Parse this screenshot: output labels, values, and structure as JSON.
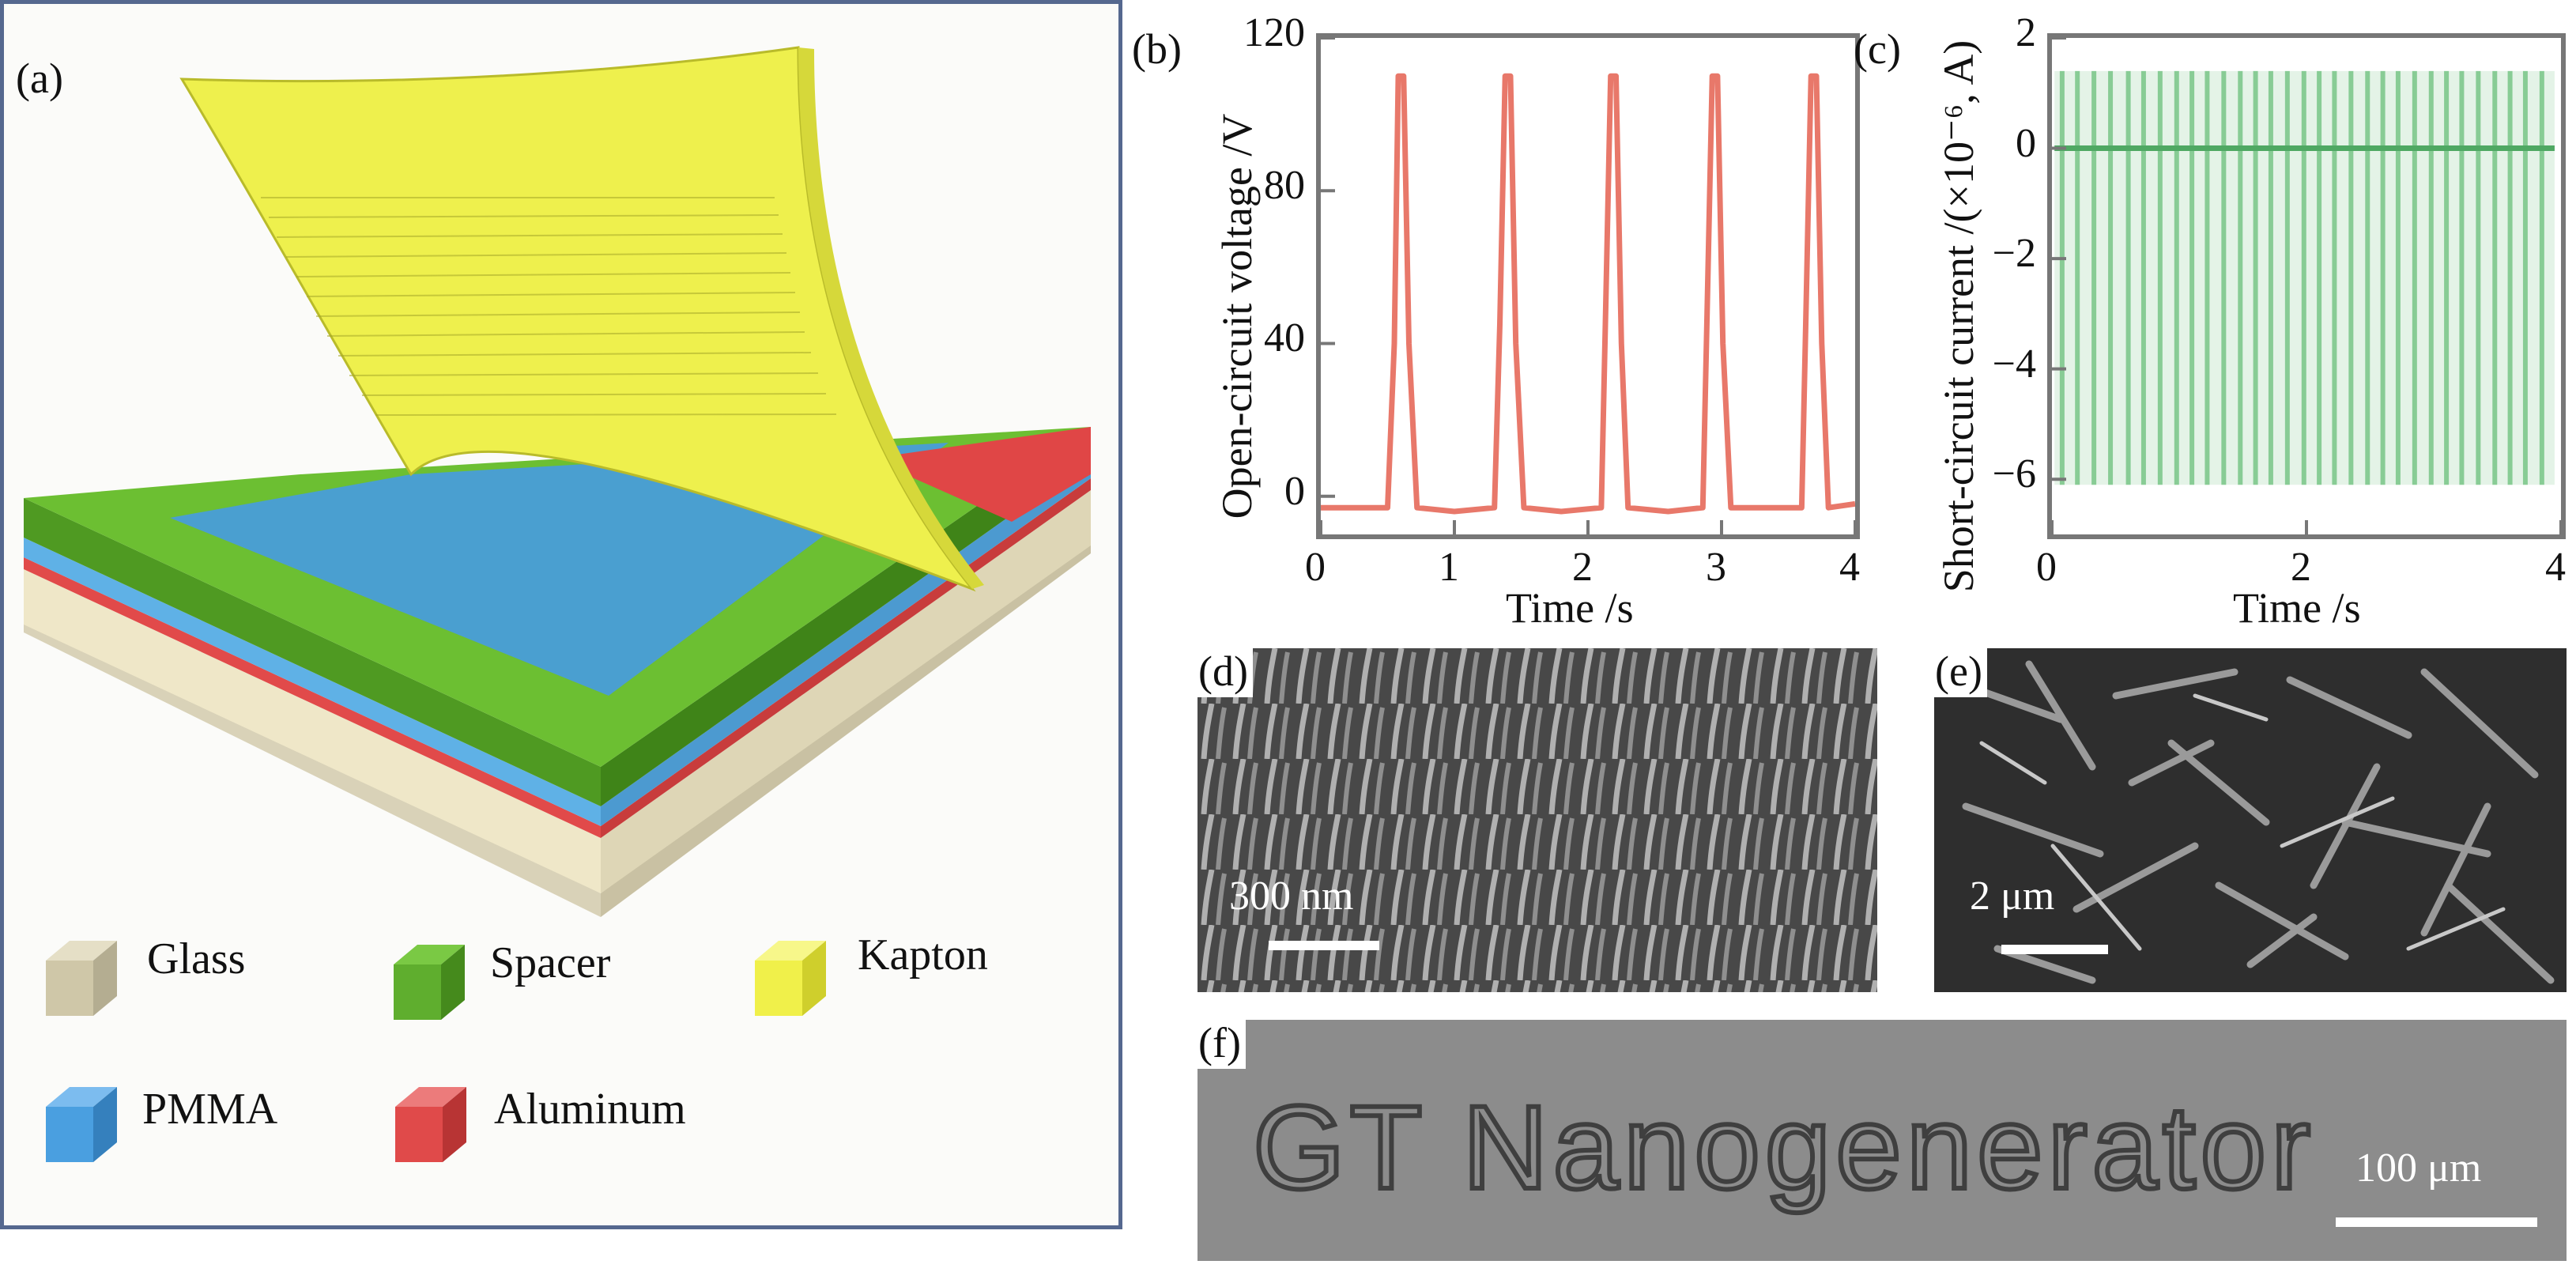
{
  "panel_a": {
    "label": "(a)",
    "legend": [
      {
        "label": "Glass",
        "color": "#cfc7a8",
        "icon": "glass-cube-icon"
      },
      {
        "label": "Spacer",
        "color": "#5fae2e",
        "icon": "spacer-cube-icon"
      },
      {
        "label": "Kapton",
        "color": "#f0f04a",
        "icon": "kapton-cube-icon"
      },
      {
        "label": "PMMA",
        "color": "#4a9fe0",
        "icon": "pmma-cube-icon"
      },
      {
        "label": "Aluminum",
        "color": "#e04a4a",
        "icon": "aluminum-cube-icon"
      }
    ]
  },
  "panel_b": {
    "label": "(b)"
  },
  "panel_c": {
    "label": "(c)"
  },
  "panel_d": {
    "label": "(d)",
    "scale": "300 nm"
  },
  "panel_e": {
    "label": "(e)",
    "scale": "2 μm"
  },
  "panel_f": {
    "label": "(f)",
    "scale": "100 μm",
    "sample_text": "GT Nanogenerator"
  },
  "chart_data": [
    {
      "id": "b",
      "type": "line",
      "xlabel": "Time /s",
      "ylabel": "Open-circuit voltage /V",
      "xlim": [
        0,
        4
      ],
      "ylim": [
        -10,
        120
      ],
      "xticks": [
        "0",
        "1",
        "2",
        "3",
        "4"
      ],
      "yticks": [
        "0",
        "40",
        "80",
        "120"
      ],
      "color": "#e8786a",
      "grid": false,
      "series": [
        {
          "x": [
            0,
            0.5,
            0.55,
            0.58,
            0.62,
            0.66,
            0.72,
            1.0,
            1.3,
            1.34,
            1.38,
            1.42,
            1.46,
            1.52,
            1.8,
            2.1,
            2.13,
            2.17,
            2.21,
            2.25,
            2.3,
            2.6,
            2.86,
            2.89,
            2.93,
            2.97,
            3.01,
            3.07,
            3.35,
            3.6,
            3.63,
            3.67,
            3.71,
            3.75,
            3.8,
            4.0
          ],
          "y": [
            -3,
            -3,
            40,
            110,
            110,
            40,
            -3,
            -4,
            -3,
            45,
            110,
            110,
            40,
            -3,
            -4,
            -3,
            45,
            110,
            110,
            40,
            -3,
            -4,
            -3,
            45,
            110,
            110,
            40,
            -3,
            -3,
            -3,
            45,
            110,
            110,
            40,
            -3,
            -2
          ]
        }
      ]
    },
    {
      "id": "c",
      "type": "line",
      "xlabel": "Time /s",
      "ylabel": "Short-circuit current /(×10⁻⁶, A)",
      "xlim": [
        0,
        4
      ],
      "ylim": [
        -7,
        2
      ],
      "xticks": [
        "0",
        "2",
        "4"
      ],
      "yticks": [
        "2",
        "0",
        "−2",
        "−4",
        "−6"
      ],
      "color": "#6abf7a",
      "grid": false,
      "series": [
        {
          "baseline": 0,
          "max": 1.4,
          "min": -6.1,
          "spike_times": [
            0.08,
            0.2,
            0.33,
            0.46,
            0.6,
            0.72,
            0.85,
            0.98,
            1.1,
            1.22,
            1.35,
            1.48,
            1.6,
            1.72,
            1.85,
            1.98,
            2.1,
            2.22,
            2.35,
            2.48,
            2.6,
            2.72,
            2.85,
            2.98,
            3.1,
            3.22,
            3.35,
            3.48,
            3.6,
            3.72,
            3.85
          ]
        }
      ]
    }
  ]
}
